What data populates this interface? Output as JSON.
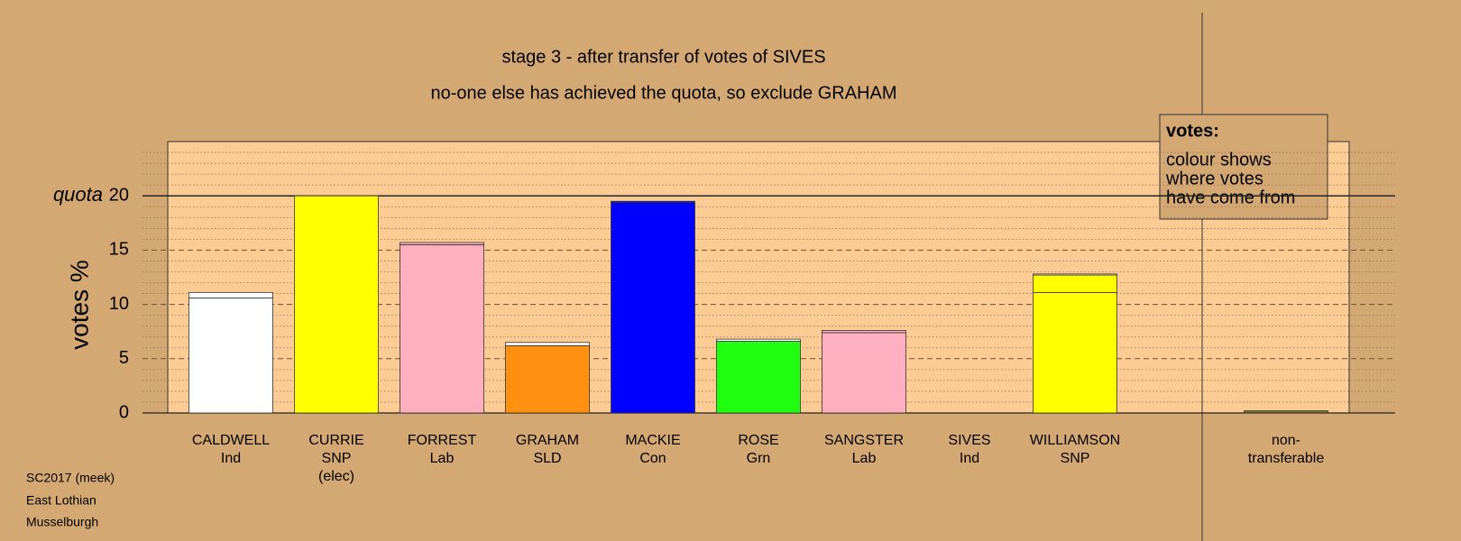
{
  "chart_data": {
    "type": "bar",
    "stacked": true,
    "title": "stage 3 - after transfer of votes of SIVES",
    "subtitle": "no-one else has achieved the quota, so exclude GRAHAM",
    "ylabel": "votes %",
    "categories": [
      [
        "CALDWELL",
        "Ind"
      ],
      [
        "CURRIE",
        "SNP",
        "(elec)"
      ],
      [
        "FORREST",
        "Lab"
      ],
      [
        "GRAHAM",
        "SLD"
      ],
      [
        "MACKIE",
        "Con"
      ],
      [
        "ROSE",
        "Grn"
      ],
      [
        "SANGSTER",
        "Lab"
      ],
      [
        "SIVES",
        "Ind"
      ],
      [
        "WILLIAMSON",
        "SNP"
      ],
      [
        "non-",
        "transferable"
      ]
    ],
    "series": [
      {
        "colors": [
          "#ffffff",
          "#ffff00",
          "#ffb0c0",
          "#ff9010",
          "#0000ff",
          "#20ff10",
          "#ffb0c0",
          "#ffffff",
          "#ffff00",
          "#70702a"
        ],
        "values": [
          10.6,
          20,
          15.5,
          6.2,
          19.4,
          6.6,
          7.4,
          0,
          11.1,
          0.2
        ]
      },
      {
        "colors": [
          null,
          null,
          null,
          null,
          null,
          null,
          null,
          null,
          "#ffff00",
          null
        ],
        "values": [
          null,
          null,
          null,
          null,
          null,
          null,
          null,
          null,
          1.6,
          null
        ]
      },
      {
        "colors": [
          "#ffffff",
          null,
          "#ffb0c0",
          "#ffffff",
          "#0000ff",
          "#ffffff",
          "#ffb0c0",
          null,
          "#ffffff",
          null
        ],
        "values": [
          0.5,
          null,
          0.2,
          0.3,
          0.1,
          0.2,
          0.2,
          null,
          0.1,
          null
        ]
      }
    ],
    "ylim": [
      0,
      25
    ],
    "yticks": [
      0,
      5,
      10,
      15,
      20
    ],
    "minor_yticks": [
      1,
      2,
      3,
      4,
      6,
      7,
      8,
      9,
      11,
      12,
      13,
      14,
      16,
      17,
      18,
      19,
      21,
      22,
      23,
      24
    ],
    "quota": 20,
    "quota_label": "quota",
    "legend": {
      "title": "votes:",
      "lines": [
        "colour shows",
        "where votes",
        "have come from"
      ]
    },
    "footer": [
      "SC2017 (meek)",
      "East Lothian",
      "Musselburgh"
    ]
  }
}
